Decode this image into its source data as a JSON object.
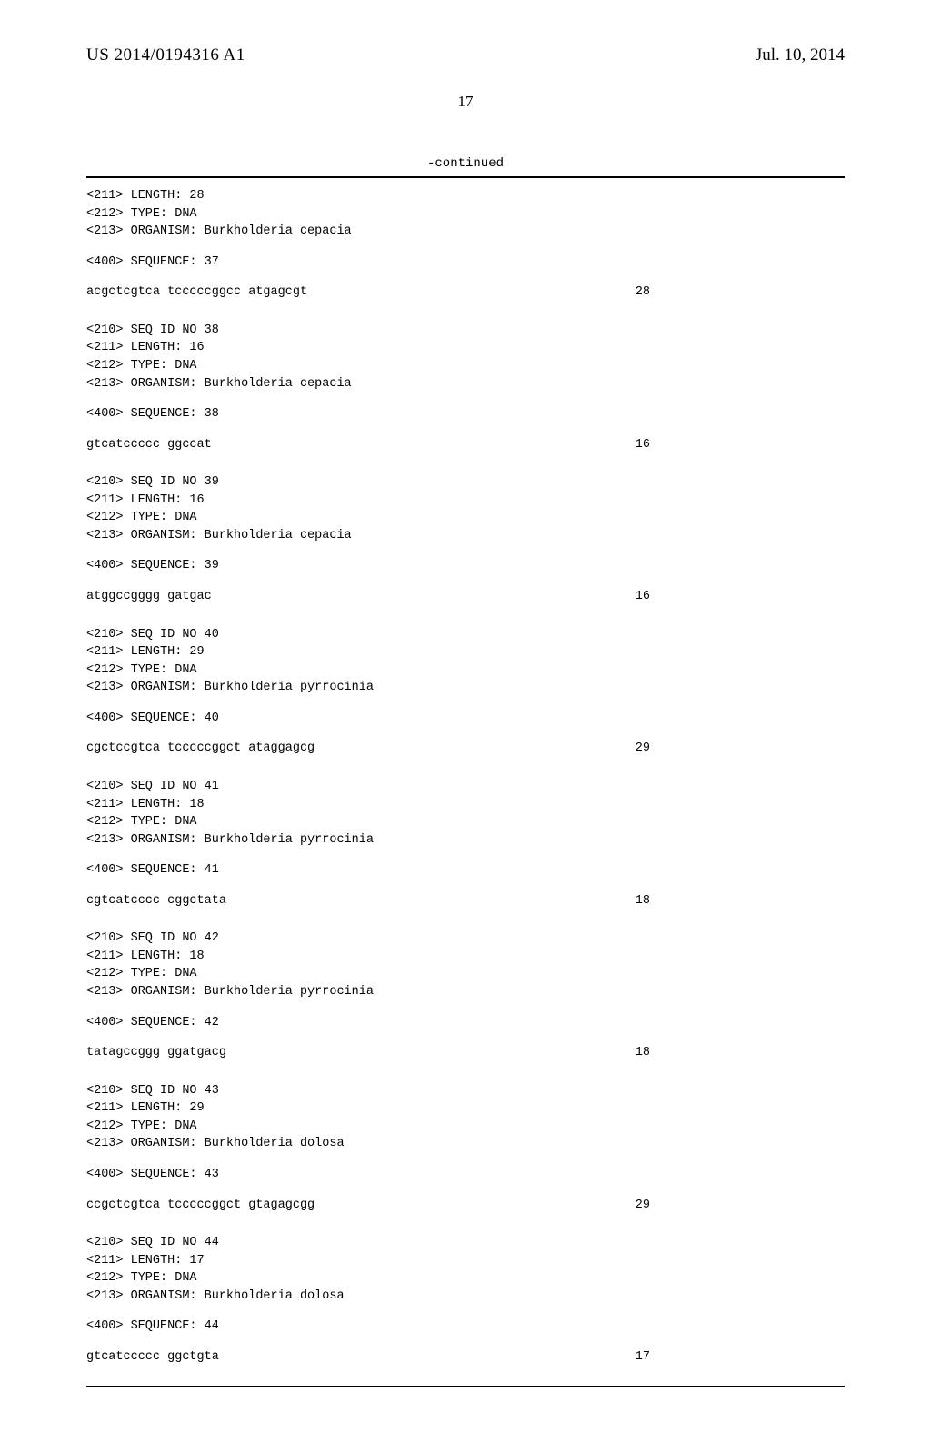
{
  "header": {
    "publication_number": "US 2014/0194316 A1",
    "publication_date": "Jul. 10, 2014"
  },
  "page_number": "17",
  "continued_label": "-continued",
  "entries": [
    {
      "length_line": "<211> LENGTH: 28",
      "type_line": "<212> TYPE: DNA",
      "organism_line": "<213> ORGANISM: Burkholderia cepacia",
      "seq_label": "<400> SEQUENCE: 37",
      "sequence": "acgctcgtca tcccccggcc atgagcgt",
      "seq_len": "28",
      "show_id": false
    },
    {
      "id_line": "<210> SEQ ID NO 38",
      "length_line": "<211> LENGTH: 16",
      "type_line": "<212> TYPE: DNA",
      "organism_line": "<213> ORGANISM: Burkholderia cepacia",
      "seq_label": "<400> SEQUENCE: 38",
      "sequence": "gtcatccccc ggccat",
      "seq_len": "16",
      "show_id": true
    },
    {
      "id_line": "<210> SEQ ID NO 39",
      "length_line": "<211> LENGTH: 16",
      "type_line": "<212> TYPE: DNA",
      "organism_line": "<213> ORGANISM: Burkholderia cepacia",
      "seq_label": "<400> SEQUENCE: 39",
      "sequence": "atggccgggg gatgac",
      "seq_len": "16",
      "show_id": true
    },
    {
      "id_line": "<210> SEQ ID NO 40",
      "length_line": "<211> LENGTH: 29",
      "type_line": "<212> TYPE: DNA",
      "organism_line": "<213> ORGANISM: Burkholderia pyrrocinia",
      "seq_label": "<400> SEQUENCE: 40",
      "sequence": "cgctccgtca tcccccggct ataggagcg",
      "seq_len": "29",
      "show_id": true
    },
    {
      "id_line": "<210> SEQ ID NO 41",
      "length_line": "<211> LENGTH: 18",
      "type_line": "<212> TYPE: DNA",
      "organism_line": "<213> ORGANISM: Burkholderia pyrrocinia",
      "seq_label": "<400> SEQUENCE: 41",
      "sequence": "cgtcatcccc cggctata",
      "seq_len": "18",
      "show_id": true
    },
    {
      "id_line": "<210> SEQ ID NO 42",
      "length_line": "<211> LENGTH: 18",
      "type_line": "<212> TYPE: DNA",
      "organism_line": "<213> ORGANISM: Burkholderia pyrrocinia",
      "seq_label": "<400> SEQUENCE: 42",
      "sequence": "tatagccggg ggatgacg",
      "seq_len": "18",
      "show_id": true
    },
    {
      "id_line": "<210> SEQ ID NO 43",
      "length_line": "<211> LENGTH: 29",
      "type_line": "<212> TYPE: DNA",
      "organism_line": "<213> ORGANISM: Burkholderia dolosa",
      "seq_label": "<400> SEQUENCE: 43",
      "sequence": "ccgctcgtca tcccccggct gtagagcgg",
      "seq_len": "29",
      "show_id": true
    },
    {
      "id_line": "<210> SEQ ID NO 44",
      "length_line": "<211> LENGTH: 17",
      "type_line": "<212> TYPE: DNA",
      "organism_line": "<213> ORGANISM: Burkholderia dolosa",
      "seq_label": "<400> SEQUENCE: 44",
      "sequence": "gtcatccccc ggctgta",
      "seq_len": "17",
      "show_id": true
    }
  ]
}
